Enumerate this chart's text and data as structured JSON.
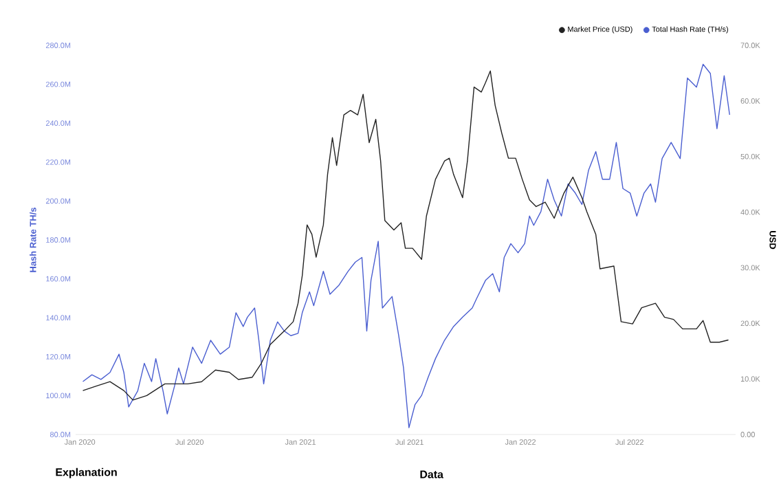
{
  "chart_data": {
    "type": "line",
    "ylabel": "Hash Rate TH/s",
    "y2label": "USD",
    "xlim": [
      "2019-12-25",
      "2022-12-24"
    ],
    "xticks": [
      {
        "value": "2020-01-01",
        "label": "Jan 2020"
      },
      {
        "value": "2020-07-01",
        "label": "Jul 2020"
      },
      {
        "value": "2021-01-01",
        "label": "Jan 2021"
      },
      {
        "value": "2021-07-01",
        "label": "Jul 2021"
      },
      {
        "value": "2022-01-01",
        "label": "Jan 2022"
      },
      {
        "value": "2022-07-01",
        "label": "Jul 2022"
      }
    ],
    "ylim": [
      80,
      280
    ],
    "yticks": [
      {
        "value": 80,
        "label": "80.0M"
      },
      {
        "value": 100,
        "label": "100.0M"
      },
      {
        "value": 120,
        "label": "120.0M"
      },
      {
        "value": 140,
        "label": "140.0M"
      },
      {
        "value": 160,
        "label": "160.0M"
      },
      {
        "value": 180,
        "label": "180.0M"
      },
      {
        "value": 200,
        "label": "200.0M"
      },
      {
        "value": 220,
        "label": "220.0M"
      },
      {
        "value": 240,
        "label": "240.0M"
      },
      {
        "value": 260,
        "label": "260.0M"
      },
      {
        "value": 280,
        "label": "280.0M"
      }
    ],
    "y2lim": [
      0,
      70
    ],
    "y2ticks": [
      {
        "value": 0,
        "label": "0.00"
      },
      {
        "value": 10,
        "label": "10.0K"
      },
      {
        "value": 20,
        "label": "20.0K"
      },
      {
        "value": 30,
        "label": "30.0K"
      },
      {
        "value": 40,
        "label": "40.0K"
      },
      {
        "value": 50,
        "label": "50.0K"
      },
      {
        "value": 60,
        "label": "60.0K"
      },
      {
        "value": 70,
        "label": "70.0K"
      }
    ],
    "legend": "top right",
    "annotations": [
      "Explanation",
      "Data"
    ],
    "series": [
      {
        "name": "Market Price (USD)",
        "color": "#222222",
        "axis": "y2",
        "x": [
          "2020-01-06",
          "2020-01-28",
          "2020-02-20",
          "2020-03-14",
          "2020-03-29",
          "2020-04-21",
          "2020-05-21",
          "2020-06-28",
          "2020-07-21",
          "2020-08-13",
          "2020-09-05",
          "2020-09-20",
          "2020-10-13",
          "2020-10-28",
          "2020-11-12",
          "2020-12-05",
          "2020-12-20",
          "2020-12-28",
          "2021-01-04",
          "2021-01-12",
          "2021-01-20",
          "2021-01-27",
          "2021-02-08",
          "2021-02-15",
          "2021-02-23",
          "2021-03-02",
          "2021-03-14",
          "2021-03-25",
          "2021-04-06",
          "2021-04-15",
          "2021-04-25",
          "2021-05-06",
          "2021-05-14",
          "2021-05-21",
          "2021-06-05",
          "2021-06-17",
          "2021-06-24",
          "2021-07-06",
          "2021-07-21",
          "2021-07-29",
          "2021-08-13",
          "2021-08-28",
          "2021-09-05",
          "2021-09-12",
          "2021-09-27",
          "2021-10-05",
          "2021-10-16",
          "2021-10-28",
          "2021-11-04",
          "2021-11-12",
          "2021-11-20",
          "2021-12-01",
          "2021-12-12",
          "2021-12-24",
          "2022-01-04",
          "2022-01-16",
          "2022-01-27",
          "2022-02-11",
          "2022-02-26",
          "2022-03-14",
          "2022-03-29",
          "2022-04-13",
          "2022-04-21",
          "2022-05-06",
          "2022-05-13",
          "2022-06-05",
          "2022-06-17",
          "2022-07-06",
          "2022-07-21",
          "2022-08-13",
          "2022-08-28",
          "2022-09-12",
          "2022-09-27",
          "2022-10-20",
          "2022-10-31",
          "2022-11-12",
          "2022-11-27",
          "2022-12-12"
        ],
        "values": [
          7.9,
          8.7,
          9.5,
          7.9,
          6.2,
          7.0,
          9.1,
          9.1,
          9.5,
          11.6,
          11.2,
          9.9,
          10.3,
          12.8,
          16.2,
          18.6,
          20.3,
          23.6,
          28.6,
          37.7,
          36.0,
          31.9,
          37.7,
          46.8,
          53.4,
          48.4,
          57.5,
          58.3,
          57.5,
          61.2,
          52.5,
          56.7,
          49.2,
          38.5,
          36.8,
          38.1,
          33.5,
          33.5,
          31.5,
          39.3,
          45.9,
          49.2,
          49.7,
          46.8,
          42.6,
          49.2,
          62.5,
          61.6,
          63.3,
          65.4,
          59.2,
          54.2,
          49.7,
          49.7,
          45.9,
          42.2,
          41.0,
          41.8,
          38.9,
          43.4,
          46.3,
          42.6,
          40.1,
          36.0,
          29.8,
          30.3,
          20.3,
          19.9,
          22.8,
          23.6,
          21.1,
          20.7,
          19.0,
          19.0,
          20.5,
          16.6,
          16.6,
          17.0
        ]
      },
      {
        "name": "Total Hash Rate (TH/s)",
        "color": "#4a5ed0",
        "x": [
          "2020-01-06",
          "2020-01-21",
          "2020-02-05",
          "2020-02-20",
          "2020-03-06",
          "2020-03-14",
          "2020-03-22",
          "2020-04-06",
          "2020-04-17",
          "2020-04-29",
          "2020-05-06",
          "2020-05-18",
          "2020-05-25",
          "2020-06-06",
          "2020-06-13",
          "2020-06-21",
          "2020-07-06",
          "2020-07-21",
          "2020-08-05",
          "2020-08-21",
          "2020-09-05",
          "2020-09-16",
          "2020-09-28",
          "2020-10-05",
          "2020-10-17",
          "2020-10-24",
          "2020-11-01",
          "2020-11-12",
          "2020-11-24",
          "2020-12-05",
          "2020-12-16",
          "2020-12-28",
          "2021-01-04",
          "2021-01-16",
          "2021-01-23",
          "2021-02-08",
          "2021-02-19",
          "2021-03-06",
          "2021-03-21",
          "2021-04-02",
          "2021-04-13",
          "2021-04-21",
          "2021-04-28",
          "2021-05-10",
          "2021-05-17",
          "2021-06-02",
          "2021-06-13",
          "2021-06-21",
          "2021-06-30",
          "2021-07-10",
          "2021-07-21",
          "2021-08-01",
          "2021-08-13",
          "2021-08-28",
          "2021-09-12",
          "2021-09-27",
          "2021-10-13",
          "2021-10-20",
          "2021-11-04",
          "2021-11-16",
          "2021-11-27",
          "2021-12-05",
          "2021-12-16",
          "2021-12-28",
          "2022-01-08",
          "2022-01-16",
          "2022-01-23",
          "2022-02-04",
          "2022-02-15",
          "2022-02-26",
          "2022-03-10",
          "2022-03-21",
          "2022-04-02",
          "2022-04-13",
          "2022-04-24",
          "2022-05-06",
          "2022-05-17",
          "2022-05-29",
          "2022-06-09",
          "2022-06-20",
          "2022-07-02",
          "2022-07-13",
          "2022-07-25",
          "2022-08-05",
          "2022-08-13",
          "2022-08-24",
          "2022-09-08",
          "2022-09-23",
          "2022-10-05",
          "2022-10-20",
          "2022-10-31",
          "2022-11-12",
          "2022-11-23",
          "2022-12-05",
          "2022-12-14"
        ],
        "values": [
          107.2,
          110.7,
          108.3,
          111.9,
          121.3,
          111.9,
          94.2,
          102.4,
          116.6,
          107.2,
          119.0,
          102.4,
          90.6,
          104.8,
          114.2,
          106.0,
          124.9,
          116.6,
          128.4,
          121.3,
          124.9,
          142.6,
          135.5,
          140.3,
          145.0,
          128.4,
          106.0,
          128.4,
          137.9,
          133.2,
          130.8,
          132.0,
          142.6,
          153.3,
          146.2,
          163.9,
          152.1,
          156.8,
          163.9,
          168.6,
          171.0,
          133.2,
          159.2,
          179.3,
          145.0,
          150.9,
          130.8,
          114.2,
          83.5,
          95.3,
          100.1,
          109.5,
          119.0,
          128.4,
          135.5,
          140.3,
          145.0,
          149.7,
          159.2,
          162.7,
          153.3,
          171.0,
          178.1,
          173.4,
          178.1,
          192.3,
          187.5,
          194.6,
          211.2,
          200.5,
          192.3,
          208.8,
          204.1,
          198.2,
          215.9,
          225.4,
          211.2,
          211.2,
          230.1,
          206.4,
          204.1,
          192.3,
          204.1,
          208.8,
          199.4,
          221.8,
          230.1,
          221.8,
          263.2,
          258.5,
          270.3,
          265.6,
          237.2,
          264.4,
          244.3
        ]
      }
    ]
  }
}
